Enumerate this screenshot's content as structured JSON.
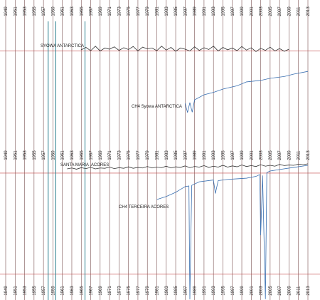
{
  "chart_data": {
    "type": "line",
    "xlim": [
      1949,
      2013
    ],
    "xticks": [
      1949,
      1951,
      1953,
      1955,
      1957,
      1959,
      1961,
      1963,
      1965,
      1967,
      1969,
      1971,
      1973,
      1975,
      1977,
      1979,
      1981,
      1983,
      1985,
      1987,
      1989,
      1991,
      1993,
      1995,
      1997,
      1999,
      2001,
      2003,
      2005,
      2007,
      2009,
      2011,
      2013
    ],
    "ylim": [
      0,
      100
    ],
    "hlines": [
      83,
      42.3,
      8.6
    ],
    "vlines": [
      1958,
      1959.6,
      1965.8
    ],
    "series": [
      {
        "name": "SYOWA ANTARCTICA",
        "color": "#333333",
        "x": [
          1965,
          1966,
          1967,
          1968,
          1969,
          1970,
          1971,
          1972,
          1973,
          1974,
          1975,
          1976,
          1977,
          1978,
          1979,
          1980,
          1981,
          1982,
          1983,
          1984,
          1985,
          1986,
          1987,
          1988,
          1989,
          1990,
          1991,
          1992,
          1993,
          1994,
          1995,
          1996,
          1997,
          1998,
          1999,
          2000,
          2001,
          2002,
          2003,
          2004,
          2005,
          2006,
          2007,
          2008,
          2009
        ],
        "values": [
          83.4,
          84.2,
          83.1,
          84.6,
          83.0,
          84.0,
          83.6,
          84.4,
          83.2,
          84.1,
          83.5,
          84.5,
          83.0,
          84.3,
          83.7,
          84.0,
          83.1,
          84.6,
          83.3,
          84.2,
          82.9,
          84.0,
          83.6,
          83.0,
          84.4,
          83.2,
          84.1,
          83.5,
          84.6,
          83.0,
          84.2,
          83.4,
          84.0,
          83.1,
          84.5,
          83.3,
          84.1,
          82.8,
          83.9,
          83.2,
          84.3,
          83.0,
          83.8,
          82.9,
          83.6
        ]
      },
      {
        "name": "CH4 Syowa ANTARCTICA",
        "color": "#3a6fb0",
        "x": [
          1987,
          1987.5,
          1988,
          1988.5,
          1989,
          1991,
          1993,
          1995,
          1998,
          2000,
          2003,
          2005,
          2008,
          2010,
          2013
        ],
        "values": [
          65.6,
          62.5,
          65.8,
          62.6,
          66.7,
          68.4,
          69.2,
          70.3,
          71.4,
          72.7,
          73.2,
          73.9,
          74.5,
          75.3,
          76.2
        ]
      },
      {
        "name": "SANTA MARIA ,ACORES",
        "color": "#333333",
        "x": [
          1962,
          1963,
          1964,
          1965,
          1966,
          1967,
          1968,
          1969,
          1970,
          1971,
          1972,
          1973,
          1974,
          1975,
          1976,
          1977,
          1978,
          1979,
          1980,
          1981,
          1982,
          1983,
          1984,
          1985,
          1986,
          1987,
          1988,
          1989,
          1990,
          1991,
          1992,
          1993,
          1994,
          1995,
          1996,
          1997,
          1998,
          1999,
          2000,
          2001,
          2002,
          2003,
          2004,
          2005,
          2006,
          2007,
          2008,
          2009,
          2010,
          2011,
          2012,
          2013
        ],
        "values": [
          43.7,
          44.0,
          43.6,
          44.1,
          43.8,
          44.2,
          43.7,
          44.0,
          43.9,
          44.3,
          43.8,
          44.1,
          43.9,
          44.4,
          43.9,
          44.2,
          44.0,
          44.5,
          44.0,
          44.3,
          44.1,
          44.6,
          44.0,
          44.4,
          44.2,
          44.7,
          44.1,
          44.5,
          44.3,
          44.8,
          44.2,
          44.6,
          44.3,
          44.9,
          44.3,
          44.7,
          44.4,
          45.0,
          44.5,
          44.8,
          44.5,
          45.1,
          44.6,
          44.9,
          44.6,
          45.2,
          44.8,
          45.0,
          44.9,
          45.3,
          45.1,
          45.4
        ]
      },
      {
        "name": "CH4 TERCEIRA ACORES",
        "color": "#3a6fb0",
        "x": [
          1981,
          1983,
          1985,
          1987,
          1987.8,
          1988,
          1988.4,
          1990,
          1992,
          1993,
          1993.4,
          1994,
          1996,
          1998,
          2000,
          2002,
          2002.8,
          2003,
          2003.4,
          2004,
          2004.3,
          2005,
          2007,
          2010,
          2013
        ],
        "values": [
          33.5,
          34.5,
          35.9,
          37.8,
          38.0,
          0.2,
          38.2,
          39.4,
          39.8,
          40.0,
          35.5,
          39.8,
          40.2,
          40.4,
          40.6,
          41.2,
          41.8,
          21.6,
          41.5,
          0.3,
          42.5,
          43.0,
          43.5,
          44.2,
          44.9
        ]
      }
    ]
  }
}
